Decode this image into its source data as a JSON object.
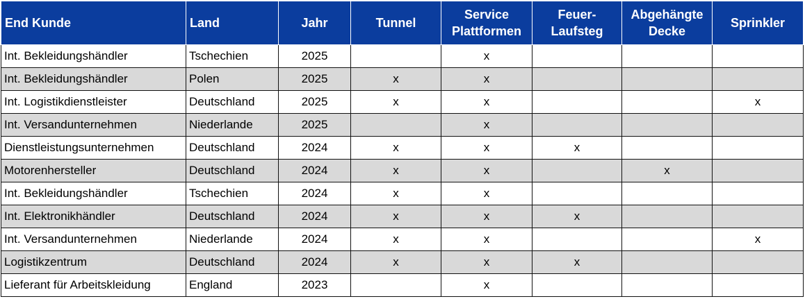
{
  "table": {
    "headers": [
      "End Kunde",
      "Land",
      "Jahr",
      "Tunnel",
      "Service\nPlattformen",
      "Feuer-\nLaufsteg",
      "Abgehängte\nDecke",
      "Sprinkler"
    ],
    "rows": [
      [
        "Int. Bekleidungshändler",
        "Tschechien",
        "2025",
        "",
        "x",
        "",
        "",
        ""
      ],
      [
        "Int. Bekleidungshändler",
        "Polen",
        "2025",
        "x",
        "x",
        "",
        "",
        ""
      ],
      [
        "Int. Logistikdienstleister",
        "Deutschland",
        "2025",
        "x",
        "x",
        "",
        "",
        "x"
      ],
      [
        "Int. Versandunternehmen",
        "Niederlande",
        "2025",
        "",
        "x",
        "",
        "",
        ""
      ],
      [
        "Dienstleistungsunternehmen",
        "Deutschland",
        "2024",
        "x",
        "x",
        "x",
        "",
        ""
      ],
      [
        "Motorenhersteller",
        "Deutschland",
        "2024",
        "x",
        "x",
        "",
        "x",
        ""
      ],
      [
        "Int. Bekleidungshändler",
        "Tschechien",
        "2024",
        "x",
        "x",
        "",
        "",
        ""
      ],
      [
        "Int. Elektronikhändler",
        "Deutschland",
        "2024",
        "x",
        "x",
        "x",
        "",
        ""
      ],
      [
        "Int. Versandunternehmen",
        "Niederlande",
        "2024",
        "x",
        "x",
        "",
        "",
        "x"
      ],
      [
        "Logistikzentrum",
        "Deutschland",
        "2024",
        "x",
        "x",
        "x",
        "",
        ""
      ],
      [
        "Lieferant für Arbeitskleidung",
        "England",
        "2023",
        "",
        "x",
        "",
        "",
        ""
      ]
    ]
  },
  "colors": {
    "header_bg": "#0b3d9e",
    "header_text": "#ffffff",
    "row_alt_bg": "#d9d9d9",
    "row_bg": "#ffffff"
  }
}
